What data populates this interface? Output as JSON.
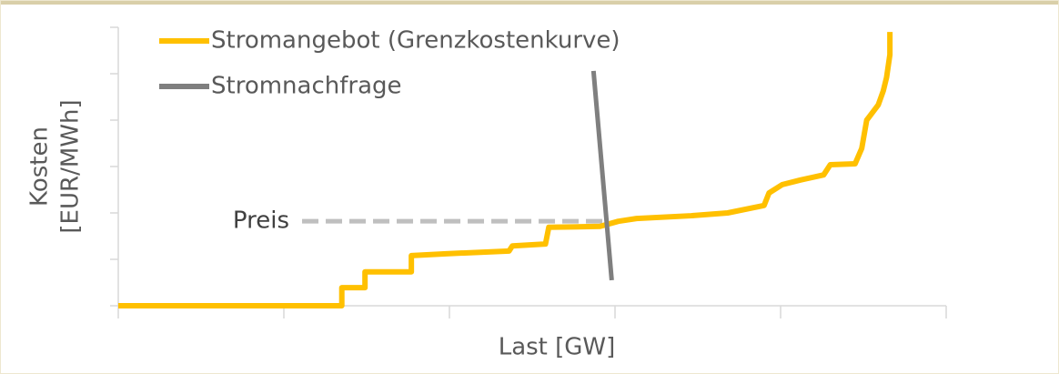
{
  "chart_data": {
    "type": "line",
    "x_label": "Last [GW]",
    "y_label": [
      "Kosten",
      "[EUR/MWh]"
    ],
    "xlim": [
      0,
      5
    ],
    "xticks": [
      0,
      1,
      2,
      3,
      4,
      5
    ],
    "ylim": [
      0,
      6
    ],
    "yticks": [
      0,
      1,
      2,
      3,
      4,
      5,
      6
    ],
    "legend": "top-left",
    "series": [
      {
        "name": "Stromangebot (Grenzkostenkurve)",
        "color": "#ffc000",
        "x": [
          0,
          1.35,
          1.35,
          1.49,
          1.49,
          1.77,
          1.77,
          1.98,
          2.36,
          2.38,
          2.58,
          2.6,
          2.91,
          3.02,
          3.13,
          3.46,
          3.68,
          3.9,
          3.93,
          4.01,
          4.12,
          4.26,
          4.3,
          4.45,
          4.49,
          4.52,
          4.55,
          4.59,
          4.62,
          4.64,
          4.66,
          4.66
        ],
        "values": [
          0,
          0,
          0.39,
          0.39,
          0.73,
          0.73,
          1.08,
          1.12,
          1.18,
          1.29,
          1.33,
          1.69,
          1.71,
          1.82,
          1.88,
          1.94,
          2.0,
          2.16,
          2.43,
          2.61,
          2.71,
          2.82,
          3.04,
          3.06,
          3.39,
          4.0,
          4.14,
          4.33,
          4.63,
          4.92,
          5.41,
          5.9
        ]
      },
      {
        "name": "Stromnachfrage",
        "color": "#7f7f7f",
        "x": [
          2.87,
          2.98
        ],
        "values": [
          5.06,
          0.55
        ]
      }
    ],
    "annotations": [
      {
        "text": "Preis",
        "y": 1.82,
        "x": [
          1.11,
          2.96
        ],
        "color": "#bfbfbf"
      }
    ]
  }
}
